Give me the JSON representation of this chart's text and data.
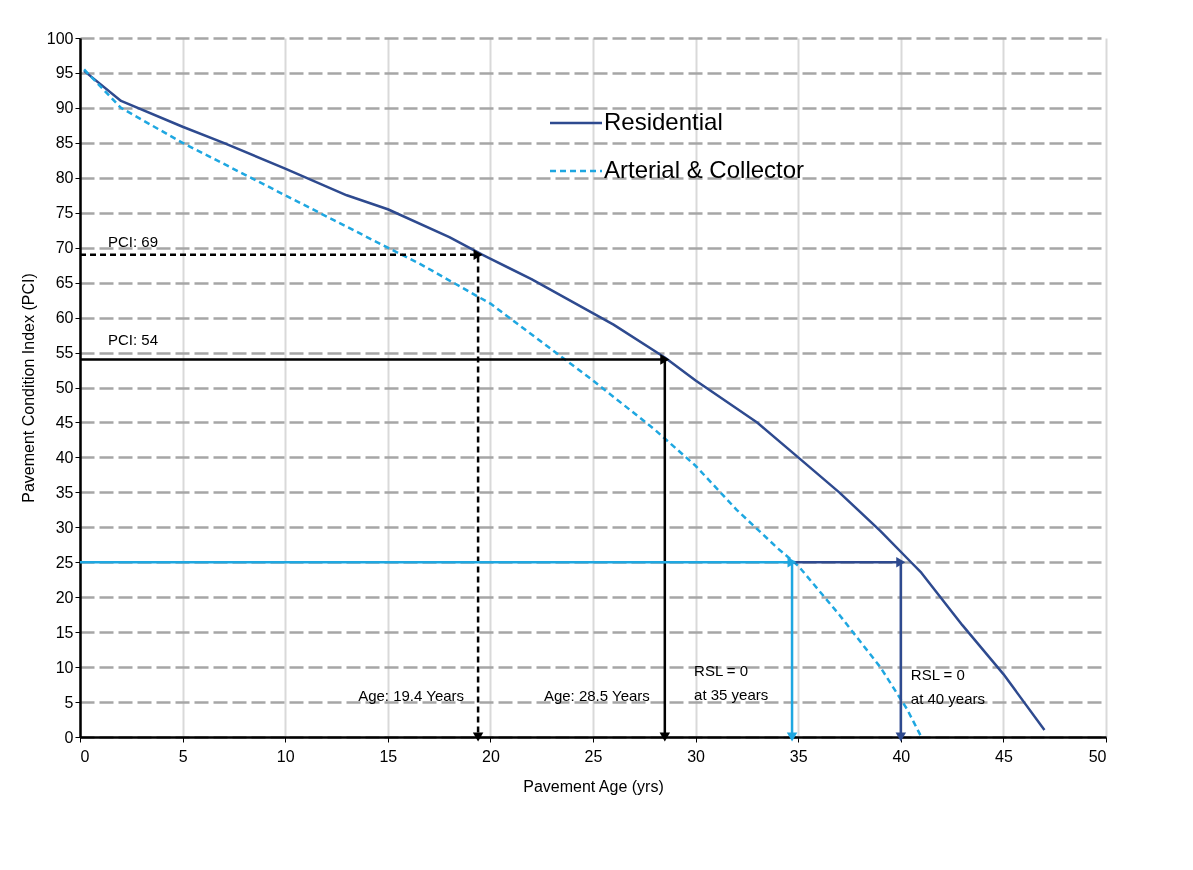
{
  "chart_data": {
    "type": "line",
    "xlabel": "Pavement Age (yrs)",
    "ylabel": "Pavement Condition Index (PCI)",
    "xlim": [
      0,
      50
    ],
    "xticks": [
      0,
      5,
      10,
      15,
      20,
      25,
      30,
      35,
      40,
      45,
      50
    ],
    "ylim": [
      0,
      100
    ],
    "yticks": [
      0,
      5,
      10,
      15,
      20,
      25,
      30,
      35,
      40,
      45,
      50,
      55,
      60,
      65,
      70,
      75,
      80,
      85,
      90,
      95,
      100
    ],
    "grid": true,
    "legend": "top",
    "series": [
      {
        "name": "Residential",
        "color": "#2e4a8f",
        "line_style": "solid",
        "x": [
          0.2,
          2,
          5,
          7,
          10,
          13,
          15,
          18,
          19.6,
          22,
          26,
          28.5,
          30,
          33,
          35,
          37,
          39,
          40.5,
          41,
          43,
          45,
          47
        ],
        "values": [
          95.3,
          91,
          87.3,
          85,
          81.3,
          77.5,
          75.5,
          71.5,
          69,
          65.5,
          59,
          54.3,
          51,
          45,
          40,
          35,
          29.5,
          25,
          23.5,
          16,
          9,
          1
        ]
      },
      {
        "name": "Arterial & Collector",
        "color": "#1ea7e1",
        "line_style": "dashed",
        "x": [
          0.2,
          2,
          5,
          10,
          15,
          16.5,
          20,
          25,
          28,
          30,
          32,
          34,
          35,
          37,
          39,
          40.3,
          41
        ],
        "values": [
          95.5,
          90,
          85,
          77.5,
          70,
          67.8,
          62,
          51,
          44,
          38.8,
          32.5,
          27,
          24.5,
          17.5,
          10,
          4,
          0
        ]
      },
      {
        "type": "line",
        "color": "#000000",
        "line_style": "dashed",
        "marker": "triangle",
        "x": [
          0,
          19.4,
          19.4
        ],
        "values": [
          69,
          69,
          0
        ]
      },
      {
        "type": "line",
        "color": "#000000",
        "line_style": "solid",
        "marker": "triangle",
        "x": [
          0,
          28.5,
          28.5
        ],
        "values": [
          54,
          54,
          0
        ]
      },
      {
        "type": "line",
        "color": "#1ea7e1",
        "line_style": "solid",
        "marker": "triangle",
        "x": [
          0,
          34.7,
          34.7
        ],
        "values": [
          25,
          25,
          0
        ]
      },
      {
        "type": "line",
        "color": "#2e4a8f",
        "line_style": "solid",
        "marker": "triangle",
        "x": [
          34.7,
          40,
          40
        ],
        "values": [
          25,
          25,
          0
        ]
      }
    ],
    "annotations": [
      {
        "text": "PCI: 69",
        "x": 0,
        "y": 69
      },
      {
        "text": "PCI: 54",
        "x": 0,
        "y": 54
      },
      {
        "text": "Age: 19.4 Years",
        "x": 19.4,
        "y": 0
      },
      {
        "text": "Age: 28.5 Years",
        "x": 28.5,
        "y": 0
      },
      {
        "text": "RSL = 0\nat 35 years",
        "x": 34.7,
        "y": 0
      },
      {
        "text": "RSL = 0\nat 40 years",
        "x": 40,
        "y": 0
      }
    ]
  }
}
